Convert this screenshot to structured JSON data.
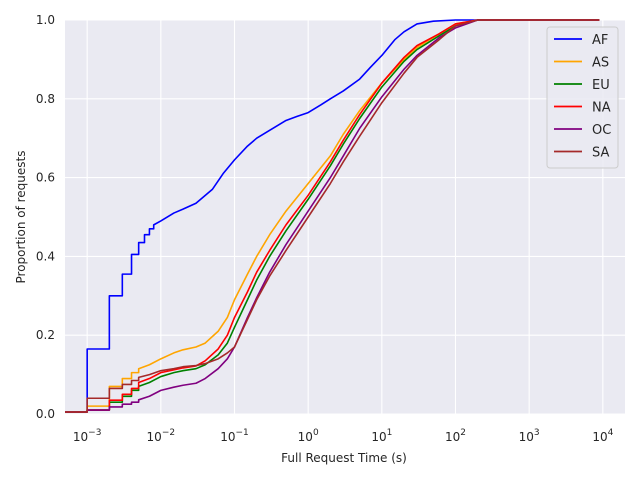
{
  "chart_data": {
    "type": "line",
    "xlabel": "Full Request Time (s)",
    "ylabel": "Proportion of requests",
    "xscale": "log",
    "xlim": [
      0.0005,
      20000
    ],
    "ylim": [
      0.0,
      1.0
    ],
    "grid": true,
    "legend_position": "top-right",
    "x_ticks": [
      {
        "value": 0.001,
        "base": "10",
        "exp": "−3"
      },
      {
        "value": 0.01,
        "base": "10",
        "exp": "−2"
      },
      {
        "value": 0.1,
        "base": "10",
        "exp": "−1"
      },
      {
        "value": 1,
        "base": "10",
        "exp": "0"
      },
      {
        "value": 10,
        "base": "10",
        "exp": "1"
      },
      {
        "value": 100,
        "base": "10",
        "exp": "2"
      },
      {
        "value": 1000,
        "base": "10",
        "exp": "3"
      },
      {
        "value": 10000,
        "base": "10",
        "exp": "4"
      }
    ],
    "y_ticks": [
      {
        "value": 0.0,
        "label": "0.0"
      },
      {
        "value": 0.2,
        "label": "0.2"
      },
      {
        "value": 0.4,
        "label": "0.4"
      },
      {
        "value": 0.6,
        "label": "0.6"
      },
      {
        "value": 0.8,
        "label": "0.8"
      },
      {
        "value": 1.0,
        "label": "1.0"
      }
    ],
    "series": [
      {
        "name": "AF",
        "color": "#0000ff",
        "points": [
          [
            0.0005,
            0.005
          ],
          [
            0.001,
            0.005
          ],
          [
            0.001,
            0.165
          ],
          [
            0.002,
            0.165
          ],
          [
            0.002,
            0.3
          ],
          [
            0.003,
            0.3
          ],
          [
            0.003,
            0.355
          ],
          [
            0.004,
            0.355
          ],
          [
            0.004,
            0.405
          ],
          [
            0.005,
            0.405
          ],
          [
            0.005,
            0.435
          ],
          [
            0.006,
            0.435
          ],
          [
            0.006,
            0.455
          ],
          [
            0.007,
            0.455
          ],
          [
            0.007,
            0.47
          ],
          [
            0.008,
            0.47
          ],
          [
            0.008,
            0.48
          ],
          [
            0.01,
            0.49
          ],
          [
            0.015,
            0.51
          ],
          [
            0.02,
            0.52
          ],
          [
            0.03,
            0.535
          ],
          [
            0.05,
            0.57
          ],
          [
            0.07,
            0.61
          ],
          [
            0.1,
            0.645
          ],
          [
            0.15,
            0.68
          ],
          [
            0.2,
            0.7
          ],
          [
            0.3,
            0.72
          ],
          [
            0.5,
            0.745
          ],
          [
            0.7,
            0.755
          ],
          [
            1.0,
            0.765
          ],
          [
            1.5,
            0.785
          ],
          [
            2.0,
            0.8
          ],
          [
            3.0,
            0.82
          ],
          [
            5.0,
            0.85
          ],
          [
            7.0,
            0.88
          ],
          [
            10.0,
            0.91
          ],
          [
            15.0,
            0.95
          ],
          [
            20.0,
            0.97
          ],
          [
            30.0,
            0.99
          ],
          [
            50.0,
            0.997
          ],
          [
            100.0,
            1.0
          ],
          [
            9000.0,
            1.0
          ]
        ]
      },
      {
        "name": "AS",
        "color": "#ffa500",
        "points": [
          [
            0.0005,
            0.005
          ],
          [
            0.001,
            0.005
          ],
          [
            0.001,
            0.02
          ],
          [
            0.002,
            0.02
          ],
          [
            0.002,
            0.07
          ],
          [
            0.003,
            0.07
          ],
          [
            0.003,
            0.09
          ],
          [
            0.004,
            0.09
          ],
          [
            0.004,
            0.105
          ],
          [
            0.005,
            0.105
          ],
          [
            0.005,
            0.115
          ],
          [
            0.007,
            0.125
          ],
          [
            0.01,
            0.14
          ],
          [
            0.015,
            0.155
          ],
          [
            0.02,
            0.163
          ],
          [
            0.03,
            0.17
          ],
          [
            0.04,
            0.18
          ],
          [
            0.06,
            0.21
          ],
          [
            0.08,
            0.245
          ],
          [
            0.1,
            0.29
          ],
          [
            0.15,
            0.355
          ],
          [
            0.2,
            0.4
          ],
          [
            0.3,
            0.455
          ],
          [
            0.5,
            0.515
          ],
          [
            1.0,
            0.585
          ],
          [
            2.0,
            0.655
          ],
          [
            3.0,
            0.71
          ],
          [
            5.0,
            0.77
          ],
          [
            10.0,
            0.84
          ],
          [
            20.0,
            0.9
          ],
          [
            30.0,
            0.93
          ],
          [
            60.0,
            0.965
          ],
          [
            100.0,
            0.99
          ],
          [
            200.0,
            1.0
          ],
          [
            9000.0,
            1.0
          ]
        ]
      },
      {
        "name": "EU",
        "color": "#008000",
        "points": [
          [
            0.0005,
            0.005
          ],
          [
            0.001,
            0.005
          ],
          [
            0.001,
            0.01
          ],
          [
            0.002,
            0.01
          ],
          [
            0.002,
            0.03
          ],
          [
            0.003,
            0.03
          ],
          [
            0.003,
            0.045
          ],
          [
            0.004,
            0.045
          ],
          [
            0.004,
            0.06
          ],
          [
            0.005,
            0.06
          ],
          [
            0.005,
            0.07
          ],
          [
            0.007,
            0.08
          ],
          [
            0.01,
            0.095
          ],
          [
            0.015,
            0.105
          ],
          [
            0.02,
            0.11
          ],
          [
            0.03,
            0.115
          ],
          [
            0.04,
            0.125
          ],
          [
            0.06,
            0.15
          ],
          [
            0.08,
            0.18
          ],
          [
            0.1,
            0.22
          ],
          [
            0.15,
            0.29
          ],
          [
            0.2,
            0.34
          ],
          [
            0.3,
            0.4
          ],
          [
            0.5,
            0.465
          ],
          [
            1.0,
            0.545
          ],
          [
            2.0,
            0.63
          ],
          [
            3.0,
            0.685
          ],
          [
            5.0,
            0.75
          ],
          [
            10.0,
            0.83
          ],
          [
            20.0,
            0.895
          ],
          [
            30.0,
            0.925
          ],
          [
            60.0,
            0.96
          ],
          [
            100.0,
            0.985
          ],
          [
            200.0,
            1.0
          ],
          [
            9000.0,
            1.0
          ]
        ]
      },
      {
        "name": "NA",
        "color": "#ff0000",
        "points": [
          [
            0.0005,
            0.005
          ],
          [
            0.001,
            0.005
          ],
          [
            0.001,
            0.01
          ],
          [
            0.002,
            0.01
          ],
          [
            0.002,
            0.035
          ],
          [
            0.003,
            0.035
          ],
          [
            0.003,
            0.05
          ],
          [
            0.004,
            0.05
          ],
          [
            0.004,
            0.065
          ],
          [
            0.005,
            0.065
          ],
          [
            0.005,
            0.08
          ],
          [
            0.007,
            0.09
          ],
          [
            0.01,
            0.105
          ],
          [
            0.015,
            0.112
          ],
          [
            0.02,
            0.117
          ],
          [
            0.03,
            0.122
          ],
          [
            0.04,
            0.135
          ],
          [
            0.06,
            0.165
          ],
          [
            0.08,
            0.2
          ],
          [
            0.1,
            0.245
          ],
          [
            0.15,
            0.31
          ],
          [
            0.2,
            0.36
          ],
          [
            0.3,
            0.415
          ],
          [
            0.5,
            0.48
          ],
          [
            1.0,
            0.555
          ],
          [
            2.0,
            0.64
          ],
          [
            3.0,
            0.695
          ],
          [
            5.0,
            0.76
          ],
          [
            10.0,
            0.84
          ],
          [
            20.0,
            0.905
          ],
          [
            30.0,
            0.935
          ],
          [
            60.0,
            0.965
          ],
          [
            100.0,
            0.99
          ],
          [
            200.0,
            1.0
          ],
          [
            9000.0,
            1.0
          ]
        ]
      },
      {
        "name": "OC",
        "color": "#800080",
        "points": [
          [
            0.0005,
            0.005
          ],
          [
            0.001,
            0.005
          ],
          [
            0.001,
            0.01
          ],
          [
            0.002,
            0.01
          ],
          [
            0.002,
            0.018
          ],
          [
            0.003,
            0.018
          ],
          [
            0.003,
            0.025
          ],
          [
            0.004,
            0.025
          ],
          [
            0.004,
            0.03
          ],
          [
            0.005,
            0.03
          ],
          [
            0.005,
            0.036
          ],
          [
            0.007,
            0.045
          ],
          [
            0.01,
            0.06
          ],
          [
            0.015,
            0.068
          ],
          [
            0.02,
            0.073
          ],
          [
            0.03,
            0.078
          ],
          [
            0.04,
            0.09
          ],
          [
            0.06,
            0.115
          ],
          [
            0.08,
            0.14
          ],
          [
            0.1,
            0.17
          ],
          [
            0.15,
            0.245
          ],
          [
            0.2,
            0.295
          ],
          [
            0.3,
            0.36
          ],
          [
            0.5,
            0.43
          ],
          [
            1.0,
            0.515
          ],
          [
            2.0,
            0.6
          ],
          [
            3.0,
            0.655
          ],
          [
            5.0,
            0.725
          ],
          [
            10.0,
            0.805
          ],
          [
            20.0,
            0.875
          ],
          [
            30.0,
            0.91
          ],
          [
            60.0,
            0.955
          ],
          [
            100.0,
            0.98
          ],
          [
            200.0,
            1.0
          ],
          [
            9000.0,
            1.0
          ]
        ]
      },
      {
        "name": "SA",
        "color": "#a52a2a",
        "points": [
          [
            0.0005,
            0.005
          ],
          [
            0.001,
            0.005
          ],
          [
            0.001,
            0.04
          ],
          [
            0.002,
            0.04
          ],
          [
            0.002,
            0.065
          ],
          [
            0.003,
            0.065
          ],
          [
            0.003,
            0.075
          ],
          [
            0.004,
            0.075
          ],
          [
            0.004,
            0.085
          ],
          [
            0.005,
            0.085
          ],
          [
            0.005,
            0.093
          ],
          [
            0.007,
            0.1
          ],
          [
            0.01,
            0.11
          ],
          [
            0.015,
            0.115
          ],
          [
            0.02,
            0.12
          ],
          [
            0.03,
            0.123
          ],
          [
            0.04,
            0.128
          ],
          [
            0.06,
            0.14
          ],
          [
            0.08,
            0.155
          ],
          [
            0.1,
            0.17
          ],
          [
            0.15,
            0.24
          ],
          [
            0.2,
            0.29
          ],
          [
            0.3,
            0.35
          ],
          [
            0.5,
            0.415
          ],
          [
            1.0,
            0.5
          ],
          [
            2.0,
            0.585
          ],
          [
            3.0,
            0.64
          ],
          [
            5.0,
            0.705
          ],
          [
            10.0,
            0.79
          ],
          [
            20.0,
            0.865
          ],
          [
            30.0,
            0.905
          ],
          [
            60.0,
            0.95
          ],
          [
            100.0,
            0.985
          ],
          [
            200.0,
            1.0
          ],
          [
            9000.0,
            1.0
          ]
        ]
      }
    ]
  }
}
